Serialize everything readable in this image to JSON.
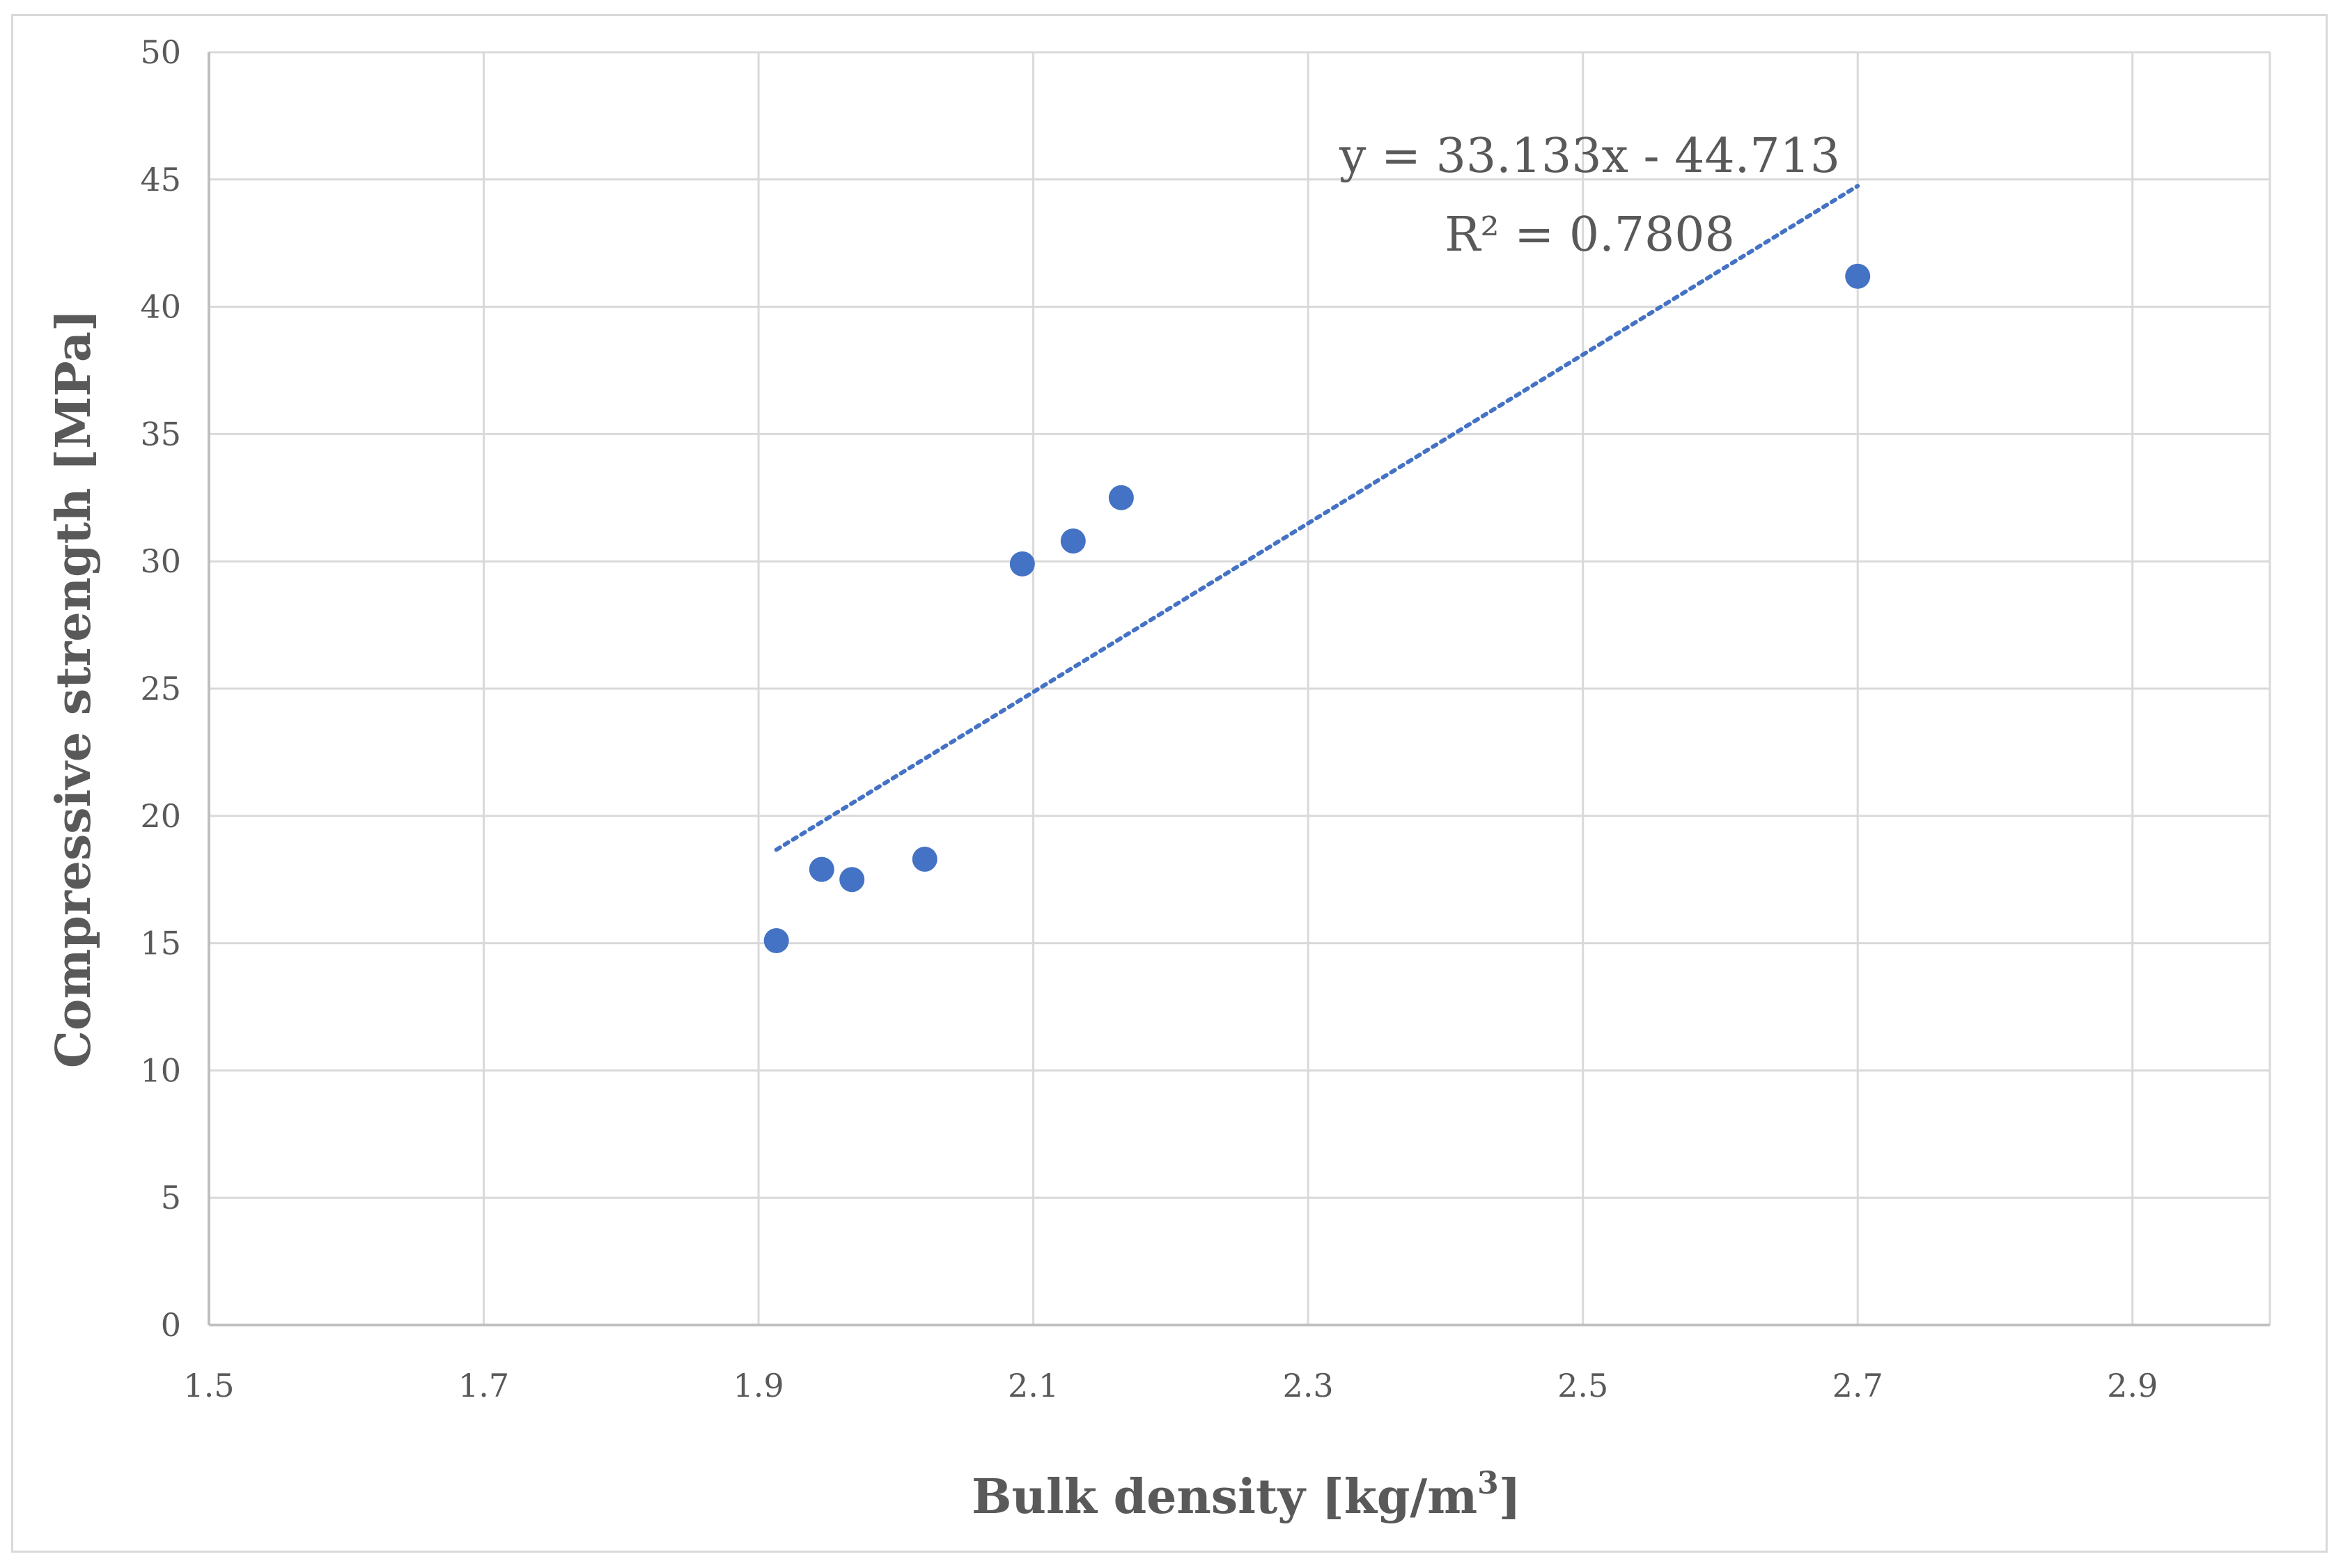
{
  "chart_data": {
    "type": "scatter",
    "title": "",
    "xlabel": "Bulk density [kg/m",
    "xlabel_superscript": "3",
    "xlabel_suffix": "]",
    "ylabel": "Compressive strength [MPa]",
    "xlim": [
      1.5,
      3.0
    ],
    "ylim": [
      0,
      50
    ],
    "x_ticks": [
      "1.5",
      "1.7",
      "1.9",
      "2.1",
      "2.3",
      "2.5",
      "2.7",
      "2.9"
    ],
    "y_ticks": [
      "0",
      "5",
      "10",
      "15",
      "20",
      "25",
      "30",
      "35",
      "40",
      "45",
      "50"
    ],
    "grid": true,
    "legend": "none",
    "series": [
      {
        "x": [
          1.913,
          1.946,
          1.968,
          2.021,
          2.092,
          2.129,
          2.164,
          2.7
        ],
        "y": [
          15.1,
          17.9,
          17.5,
          18.3,
          29.9,
          30.8,
          32.5,
          41.2
        ],
        "color": "#4472c4"
      }
    ],
    "trendline": {
      "type": "linear",
      "slope": 33.133,
      "intercept": -44.713,
      "x_range": [
        1.913,
        2.7
      ],
      "style": "dotted",
      "color": "#4472c4",
      "equation_label": "y = 33.133x - 44.713",
      "r2_label": "R² = 0.7808"
    }
  }
}
